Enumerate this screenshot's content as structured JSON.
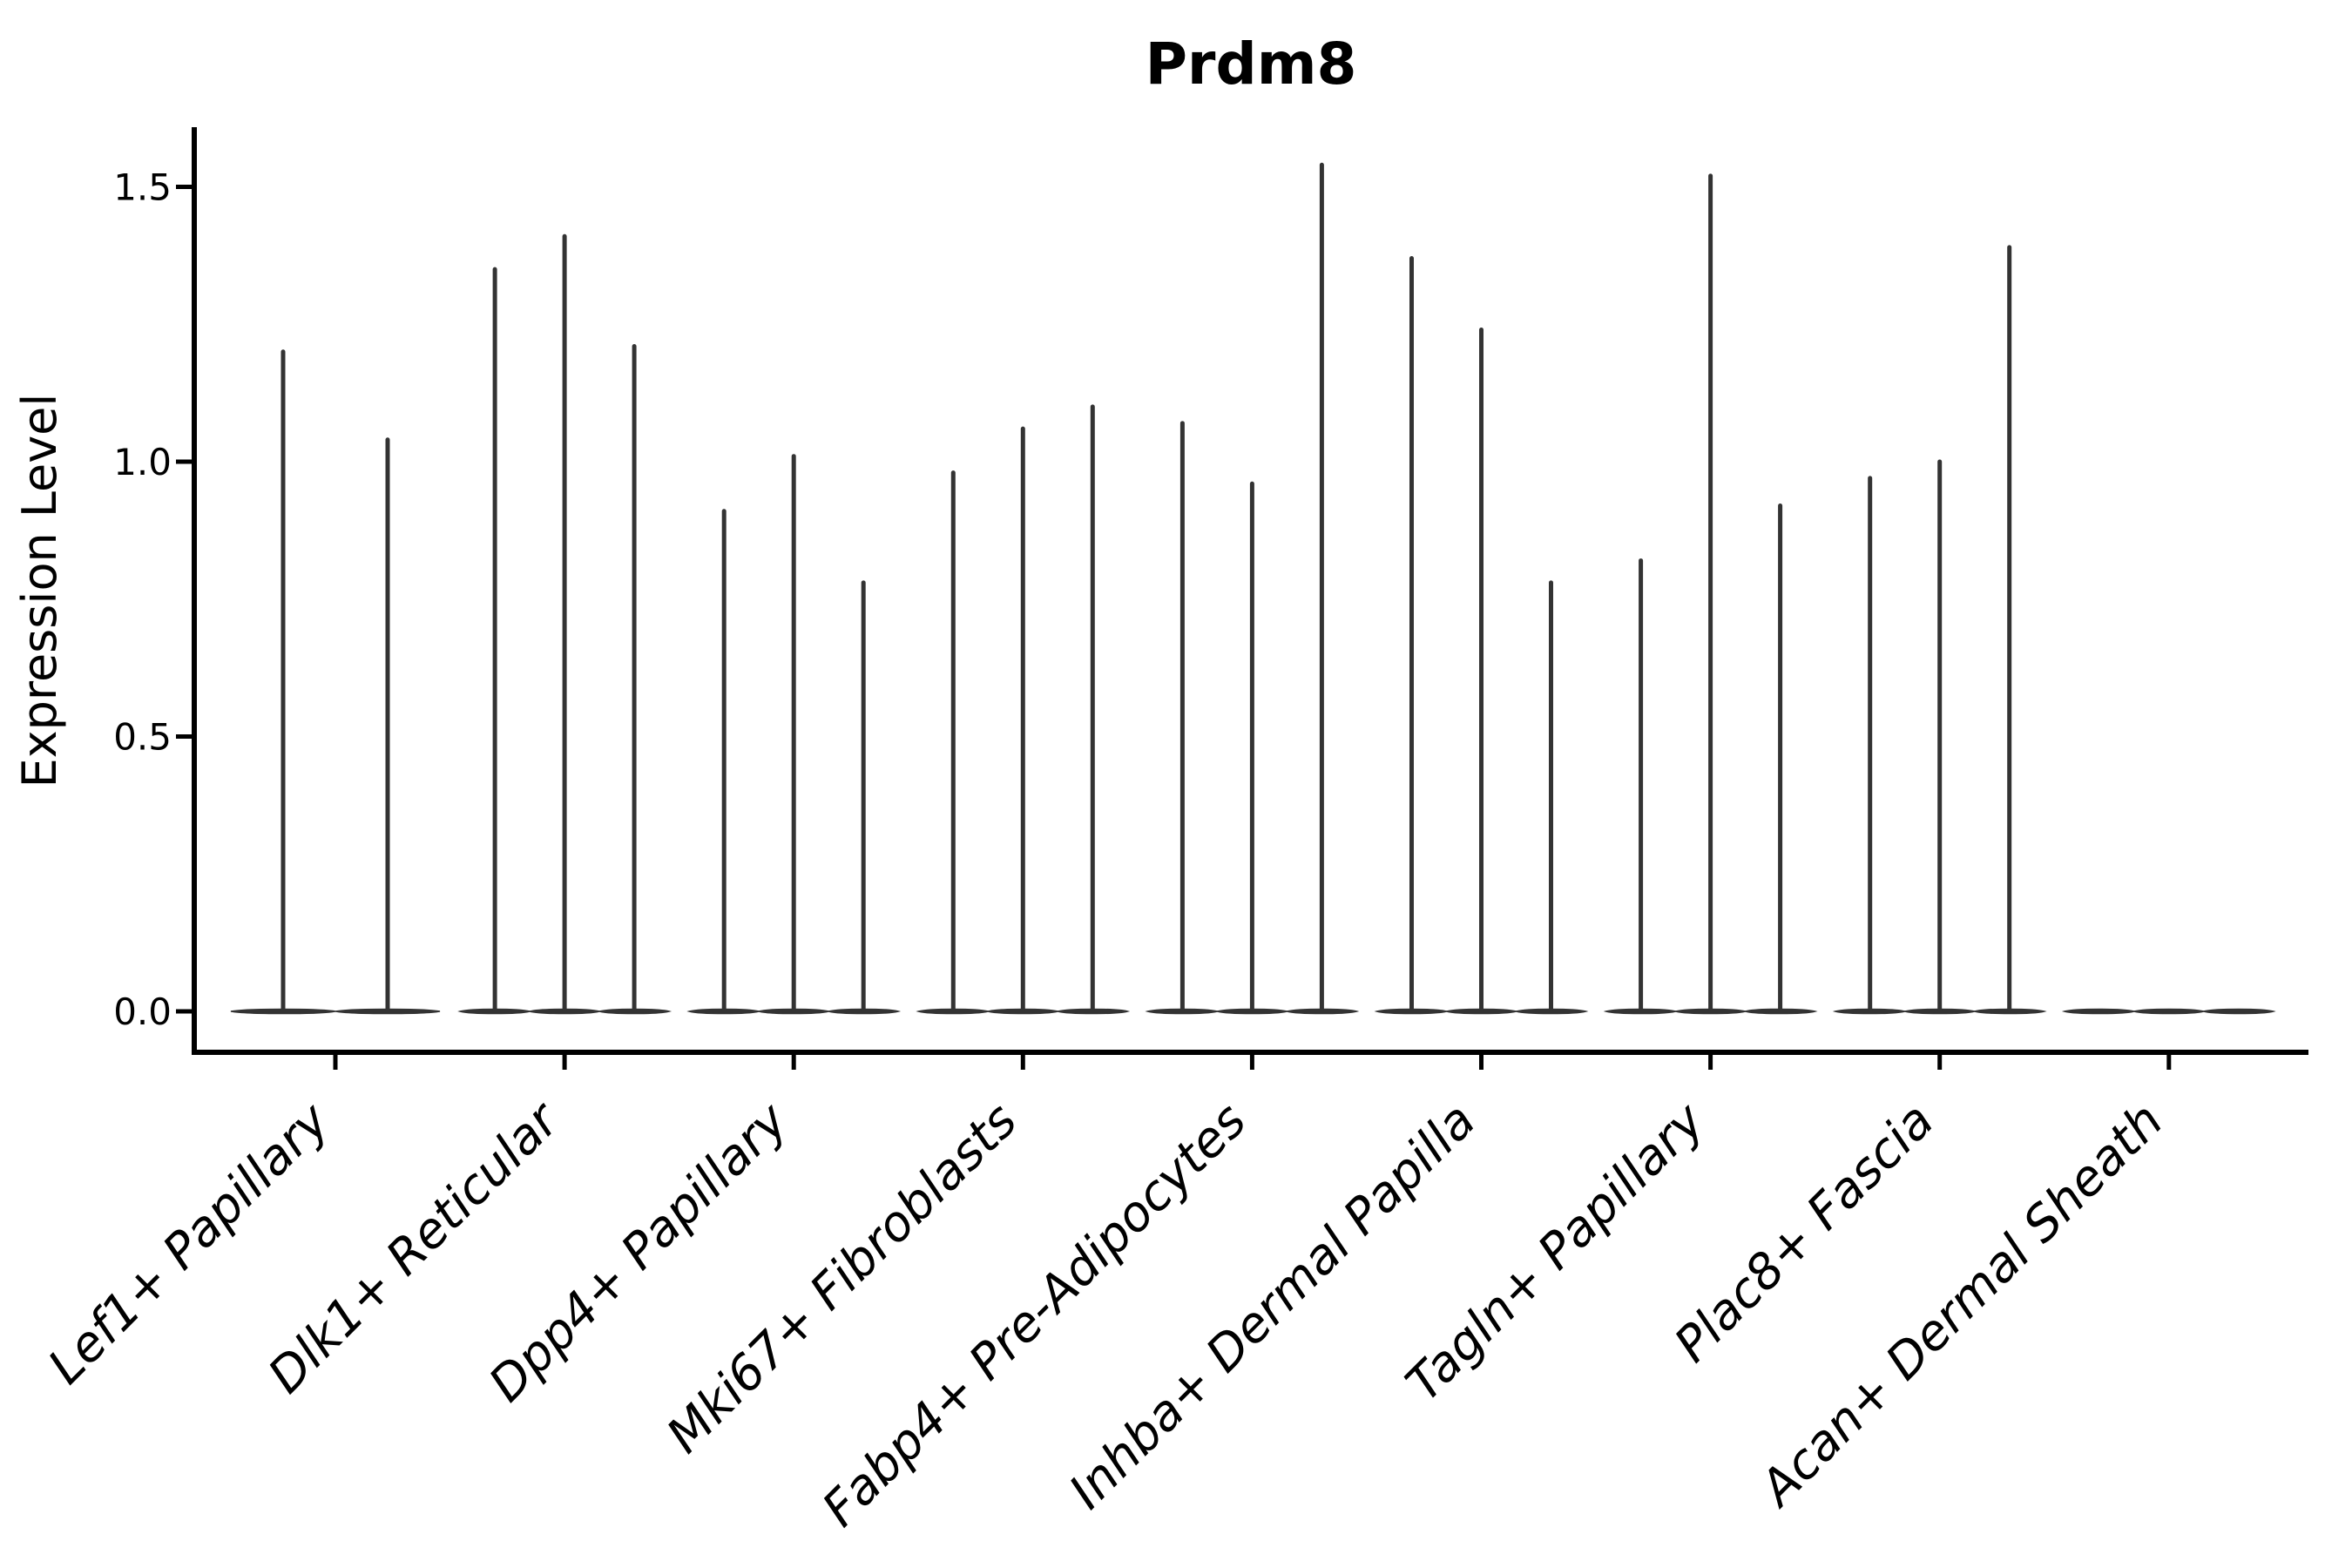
{
  "chart_data": {
    "type": "violin",
    "title": "Prdm8",
    "xlabel": "",
    "ylabel": "Expression Level",
    "ylim": [
      -0.09,
      1.61
    ],
    "grid": false,
    "legend": "none",
    "ytick_values": [
      0.0,
      0.5,
      1.0,
      1.5
    ],
    "ytick_labels": [
      "0.0",
      "0.5",
      "1.0",
      "1.5"
    ],
    "categories": [
      "Lef1+ Papillary",
      "Dlk1+ Reticular",
      "Dpp4+ Papillary",
      "Mki67+ Fibroblasts",
      "Fabp4+ Pre-Adipocytes",
      "Inhba+ Dermal Papilla",
      "Tagln+ Papillary",
      "Plac8+ Fascia",
      "Acan+ Dermal Sheath"
    ],
    "series": [
      {
        "name": "Lef1+ Papillary",
        "violin_peaks": [
          1.2,
          1.04
        ]
      },
      {
        "name": "Dlk1+ Reticular",
        "violin_peaks": [
          1.35,
          1.41,
          1.21
        ]
      },
      {
        "name": "Dpp4+ Papillary",
        "violin_peaks": [
          0.91,
          1.01,
          0.78
        ]
      },
      {
        "name": "Mki67+ Fibroblasts",
        "violin_peaks": [
          0.98,
          1.06,
          1.1
        ]
      },
      {
        "name": "Fabp4+ Pre-Adipocytes",
        "violin_peaks": [
          1.07,
          0.96,
          1.54
        ]
      },
      {
        "name": "Inhba+ Dermal Papilla",
        "violin_peaks": [
          1.37,
          1.24,
          0.78
        ]
      },
      {
        "name": "Tagln+ Papillary",
        "violin_peaks": [
          0.82,
          1.52,
          0.92
        ]
      },
      {
        "name": "Plac8+ Fascia",
        "violin_peaks": [
          0.97,
          1.0,
          1.39
        ]
      },
      {
        "name": "Acan+ Dermal Sheath",
        "violin_peaks": [
          0.0,
          0.0,
          0.0
        ]
      }
    ],
    "colors": {
      "violin": "#333333",
      "axis": "#000000",
      "text": "#000000",
      "background": "#ffffff"
    }
  }
}
